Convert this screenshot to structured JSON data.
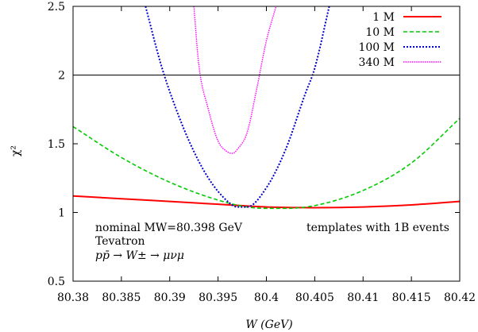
{
  "chart_data": {
    "type": "line",
    "xlabel": "W (GeV)",
    "ylabel": "χ²",
    "xlim": [
      80.38,
      80.42
    ],
    "ylim": [
      0.5,
      2.5
    ],
    "xticks": [
      "80.38",
      "80.385",
      "80.39",
      "80.395",
      "80.4",
      "80.405",
      "80.41",
      "80.415",
      "80.42"
    ],
    "yticks": [
      "0.5",
      "1",
      "1.5",
      "2",
      "2.5"
    ],
    "grid": false,
    "legend_position": "top-right",
    "reference_line": {
      "y": 2,
      "color": "#000000"
    },
    "annotations": {
      "left": [
        "nominal MW=80.398 GeV",
        "Tevatron",
        "pp̄ → W± → μνμ"
      ],
      "right": "templates with 1B events"
    },
    "series": [
      {
        "name": "1 M",
        "color": "#ff0000",
        "style": "solid",
        "x": [
          80.38,
          80.385,
          80.39,
          80.395,
          80.4,
          80.405,
          80.41,
          80.415,
          80.42
        ],
        "y": [
          1.12,
          1.1,
          1.08,
          1.06,
          1.04,
          1.035,
          1.04,
          1.055,
          1.08
        ]
      },
      {
        "name": "10 M",
        "color": "#00cc00",
        "style": "dashed",
        "x": [
          80.38,
          80.385,
          80.39,
          80.395,
          80.398,
          80.4,
          80.402,
          80.405,
          80.41,
          80.415,
          80.42
        ],
        "y": [
          1.625,
          1.4,
          1.22,
          1.09,
          1.04,
          1.03,
          1.03,
          1.05,
          1.16,
          1.36,
          1.685
        ]
      },
      {
        "name": "100 M",
        "color": "#0000cc",
        "style": "dotted",
        "x": [
          80.3875,
          80.389,
          80.39,
          80.392,
          80.394,
          80.396,
          80.397,
          80.398,
          80.4,
          80.402,
          80.404,
          80.405,
          80.4065
        ],
        "y": [
          2.5,
          2.1,
          1.88,
          1.52,
          1.25,
          1.08,
          1.04,
          1.04,
          1.18,
          1.46,
          1.86,
          2.05,
          2.5
        ]
      },
      {
        "name": "340 M",
        "color": "#ff00ff",
        "style": "densely-dotted",
        "x": [
          80.3925,
          80.393,
          80.394,
          80.395,
          80.396,
          80.3965,
          80.397,
          80.398,
          80.399,
          80.4,
          80.401
        ],
        "y": [
          2.5,
          2.08,
          1.75,
          1.52,
          1.44,
          1.43,
          1.46,
          1.58,
          1.9,
          2.25,
          2.5
        ]
      }
    ]
  }
}
